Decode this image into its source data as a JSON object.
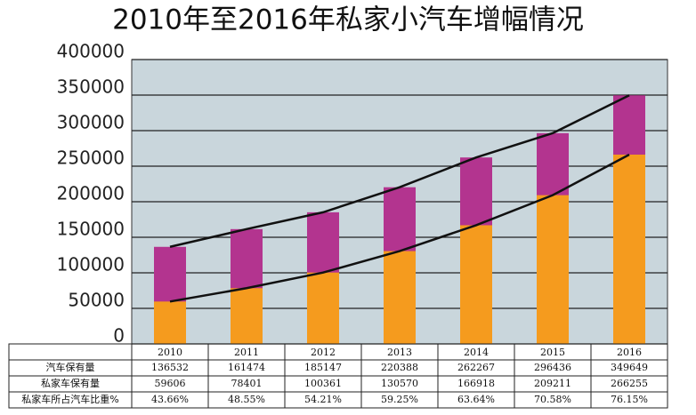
{
  "chart_data": {
    "type": "bar",
    "title": "2010年至2016年私家小汽车增幅情况",
    "categories": [
      "2010",
      "2011",
      "2012",
      "2013",
      "2014",
      "2015",
      "2016"
    ],
    "series": [
      {
        "name": "汽车保有量",
        "color": "#b3348f",
        "values": [
          136532,
          161474,
          185147,
          220388,
          262267,
          296436,
          349649
        ]
      },
      {
        "name": "私家车保有量",
        "color": "#f59b1e",
        "values": [
          59606,
          78401,
          100361,
          130570,
          166918,
          209211,
          266255
        ]
      }
    ],
    "table": {
      "rows": [
        {
          "name": "私家车所占汽车比重%",
          "values": [
            "43.66%",
            "48.55%",
            "54.21%",
            "59.25%",
            "63.64%",
            "70.58%",
            "76.15%"
          ]
        }
      ]
    },
    "ylim": [
      0,
      400000
    ],
    "yticks": [
      0,
      50000,
      100000,
      150000,
      200000,
      250000,
      300000,
      350000,
      400000
    ],
    "grid": true
  }
}
